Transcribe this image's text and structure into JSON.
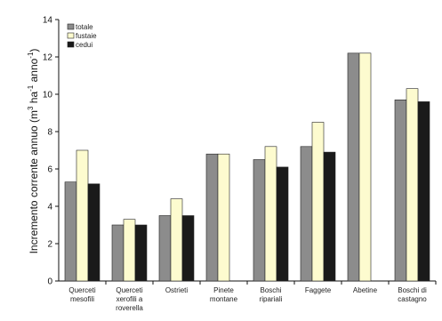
{
  "chart_data": {
    "type": "bar",
    "ylabel_main": "Incremento corrente annuo (m",
    "ylabel_sup1": "3",
    "ylabel_mid": " ha",
    "ylabel_sup2": "-1",
    "ylabel_mid2": " anno",
    "ylabel_sup3": "-1",
    "ylabel_end": ")",
    "ylim": [
      0,
      14
    ],
    "yticks": [
      "0",
      "2",
      "4",
      "6",
      "8",
      "10",
      "12",
      "14"
    ],
    "grid": false,
    "legend_position": "top-left",
    "categories": [
      [
        "Querceti",
        "mesofili"
      ],
      [
        "Querceti",
        "xerofili a",
        "roverella"
      ],
      [
        "Ostrieti"
      ],
      [
        "Pinete",
        "montane"
      ],
      [
        "Boschi",
        "ripariali"
      ],
      [
        "Faggete"
      ],
      [
        "Abetine"
      ],
      [
        "Boschi di",
        "castagno"
      ]
    ],
    "series": [
      {
        "name": "totale",
        "color": "#8c8c8c",
        "values": [
          5.3,
          3.0,
          3.5,
          6.8,
          6.5,
          7.2,
          12.2,
          9.7
        ]
      },
      {
        "name": "fustaie",
        "color": "#fdfbcf",
        "values": [
          7.0,
          3.3,
          4.4,
          6.8,
          7.2,
          8.5,
          12.2,
          10.3
        ]
      },
      {
        "name": "cedui",
        "color": "#1a1a1a",
        "values": [
          5.2,
          3.0,
          3.5,
          null,
          6.1,
          6.9,
          null,
          9.6
        ]
      }
    ]
  }
}
